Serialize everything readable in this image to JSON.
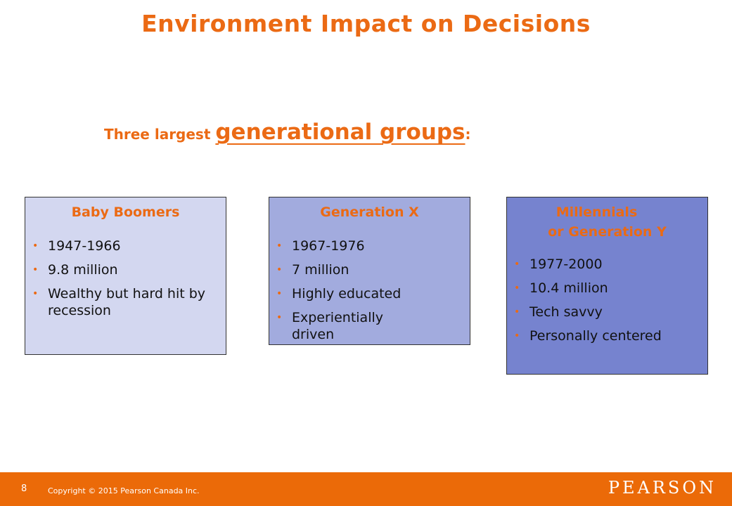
{
  "slide": {
    "title": "Environment Impact on Decisions",
    "subtitle_lead": "Three largest ",
    "subtitle_key": "generational groups",
    "subtitle_colon": ":"
  },
  "groups": [
    {
      "heading_lines": [
        "Baby Boomers"
      ],
      "items": [
        "1947-1966",
        "9.8 million",
        "Wealthy but hard hit by recession"
      ]
    },
    {
      "heading_lines": [
        "Generation X"
      ],
      "items": [
        "1967-1976",
        "7 million",
        "Highly educated",
        "Experientially driven"
      ]
    },
    {
      "heading_lines": [
        "Millennials",
        "or Generation Y"
      ],
      "items": [
        "1977-2000",
        "10.4 million",
        "Tech savvy",
        "Personally centered"
      ]
    }
  ],
  "footer": {
    "page_number": "8",
    "copyright": "Copyright © 2015 Pearson Canada Inc.",
    "logo": "PEARSON"
  },
  "colors": {
    "accent": "#EB6A14",
    "footer_bg": "#EB6A08",
    "box1_bg": "#D3D7F0",
    "box2_bg": "#A2ABDE",
    "box3_bg": "#7683CF"
  }
}
